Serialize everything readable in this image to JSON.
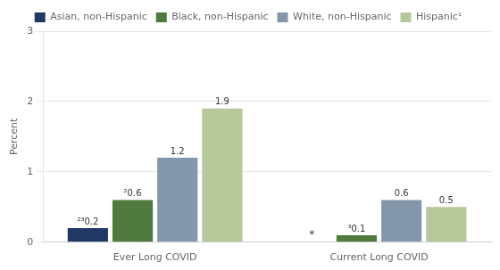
{
  "chart_data": {
    "type": "bar",
    "categories": [
      "Ever Long COVID",
      "Current Long COVID"
    ],
    "series": [
      {
        "name": "Asian, non-Hispanic",
        "color": "#1f3864",
        "values": [
          0.2,
          null
        ],
        "value_labels": [
          "²³0.2",
          "*"
        ]
      },
      {
        "name": "Black, non-Hispanic",
        "color": "#4e7a3e",
        "values": [
          0.6,
          0.1
        ],
        "value_labels": [
          "²0.6",
          "³0.1"
        ]
      },
      {
        "name": "White, non-Hispanic",
        "color": "#8496a9",
        "values": [
          1.2,
          0.6
        ],
        "value_labels": [
          "1.2",
          "0.6"
        ]
      },
      {
        "name": "Hispanic¹",
        "color": "#b5c99a",
        "values": [
          1.9,
          0.5
        ],
        "value_labels": [
          "1.9",
          "0.5"
        ]
      }
    ],
    "ylabel": "Percent",
    "ylim": [
      0,
      3
    ],
    "yticks": [
      0,
      1,
      2,
      3
    ],
    "grid": "y",
    "legend": "top",
    "data_labels": true
  }
}
